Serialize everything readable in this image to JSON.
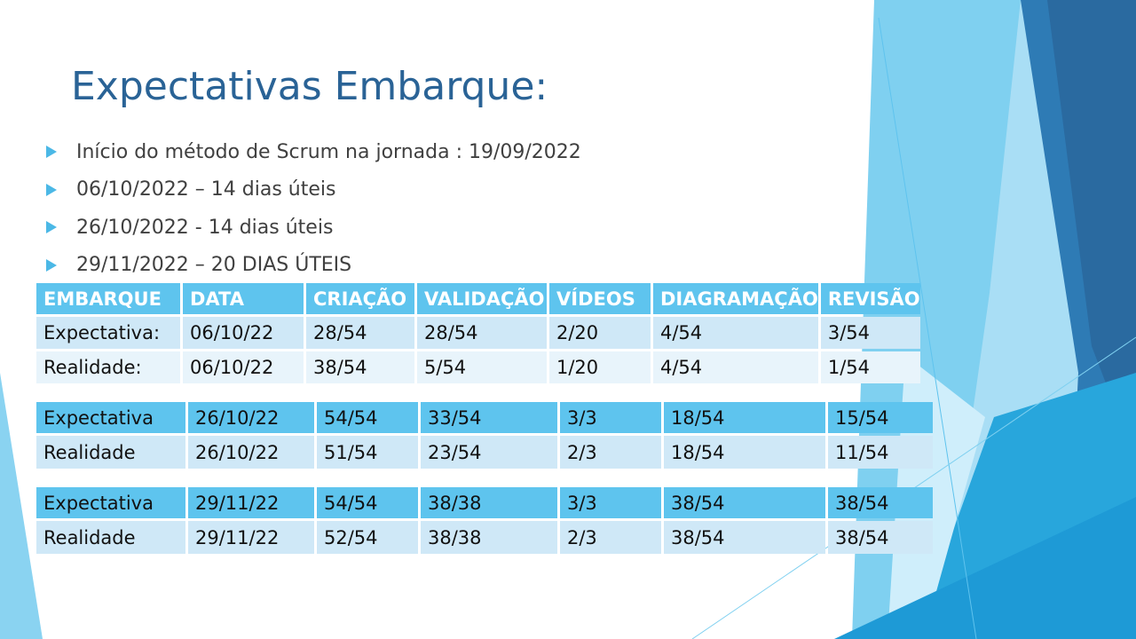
{
  "title": "Expectativas Embarque:",
  "bullets": [
    "Início do método de Scrum na jornada : 19/09/2022",
    "06/10/2022 – 14 dias úteis",
    "26/10/2022 - 14 dias úteis",
    "29/11/2022 – 20 DIAS ÚTEIS"
  ],
  "table1": {
    "headers": [
      "EMBARQUE",
      "DATA",
      "CRIAÇÃO",
      "VALIDAÇÃO",
      "VÍDEOS",
      "DIAGRAMAÇÃO",
      "REVISÃO"
    ],
    "rows": [
      [
        "Expectativa:",
        "06/10/22",
        "28/54",
        "28/54",
        "2/20",
        "4/54",
        "3/54"
      ],
      [
        "Realidade:",
        "06/10/22",
        "38/54",
        "5/54",
        "1/20",
        "4/54",
        "1/54"
      ]
    ]
  },
  "table2": {
    "rows": [
      [
        "Expectativa",
        "26/10/22",
        "54/54",
        "33/54",
        "3/3",
        "18/54",
        "15/54"
      ],
      [
        "Realidade",
        "26/10/22",
        "51/54",
        "23/54",
        "2/3",
        "18/54",
        "11/54"
      ]
    ]
  },
  "table3": {
    "rows": [
      [
        "Expectativa",
        "29/11/22",
        "54/54",
        "38/38",
        "3/3",
        "38/54",
        "38/54"
      ],
      [
        "Realidade",
        "29/11/22",
        "52/54",
        "38/38",
        "2/3",
        "38/54",
        "38/54"
      ]
    ]
  },
  "colors": {
    "title": "#2a6396",
    "header": "#5ec4ee",
    "row_light": "#cfe8f7",
    "row_lighter": "#e8f4fb",
    "bullet": "#4bb8e6"
  }
}
